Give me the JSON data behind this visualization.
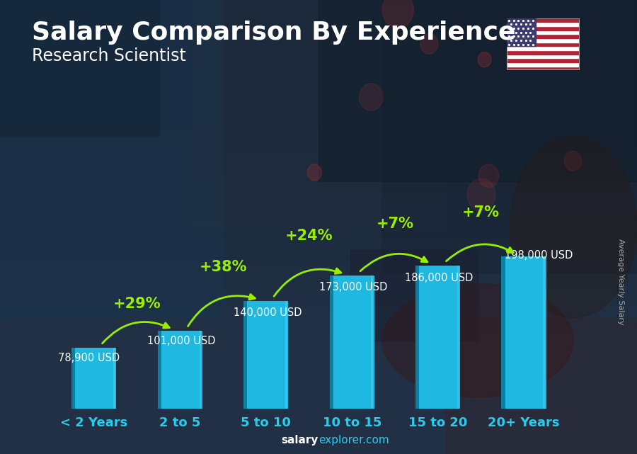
{
  "title": "Salary Comparison By Experience",
  "subtitle": "Research Scientist",
  "ylabel": "Average Yearly Salary",
  "footer_bold": "salary",
  "footer_regular": "explorer.com",
  "categories": [
    "< 2 Years",
    "2 to 5",
    "5 to 10",
    "10 to 15",
    "15 to 20",
    "20+ Years"
  ],
  "values": [
    78900,
    101000,
    140000,
    173000,
    186000,
    198000
  ],
  "value_labels": [
    "78,900 USD",
    "101,000 USD",
    "140,000 USD",
    "173,000 USD",
    "186,000 USD",
    "198,000 USD"
  ],
  "pct_labels": [
    "+29%",
    "+38%",
    "+24%",
    "+7%",
    "+7%"
  ],
  "bar_color_face": "#1eb8e0",
  "bar_color_dark": "#0d7fa0",
  "bar_color_shine": "#50d4f5",
  "bg_color": "#1a2535",
  "title_color": "#ffffff",
  "subtitle_color": "#ffffff",
  "value_label_color": "#ffffff",
  "pct_color": "#99ee00",
  "xlabel_color": "#29ccee",
  "footer_bold_color": "#ffffff",
  "footer_reg_color": "#29ccee",
  "title_fontsize": 26,
  "subtitle_fontsize": 17,
  "value_fontsize": 10.5,
  "pct_fontsize": 15,
  "xlabel_fontsize": 13,
  "ylabel_fontsize": 8
}
